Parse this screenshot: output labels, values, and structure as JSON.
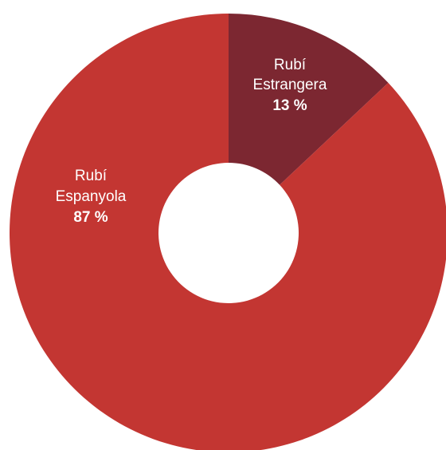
{
  "chart_data": {
    "type": "pie",
    "donut": true,
    "start_angle_deg": 0,
    "direction": "clockwise",
    "title": "",
    "slices": [
      {
        "name_line1": "Rubí",
        "name_line2": "Estrangera",
        "value": 13,
        "label": "13 %",
        "color": "#7c2731"
      },
      {
        "name_line1": "Rubí",
        "name_line2": "Espanyola",
        "value": 87,
        "label": "87 %",
        "color": "#c33632"
      }
    ]
  }
}
